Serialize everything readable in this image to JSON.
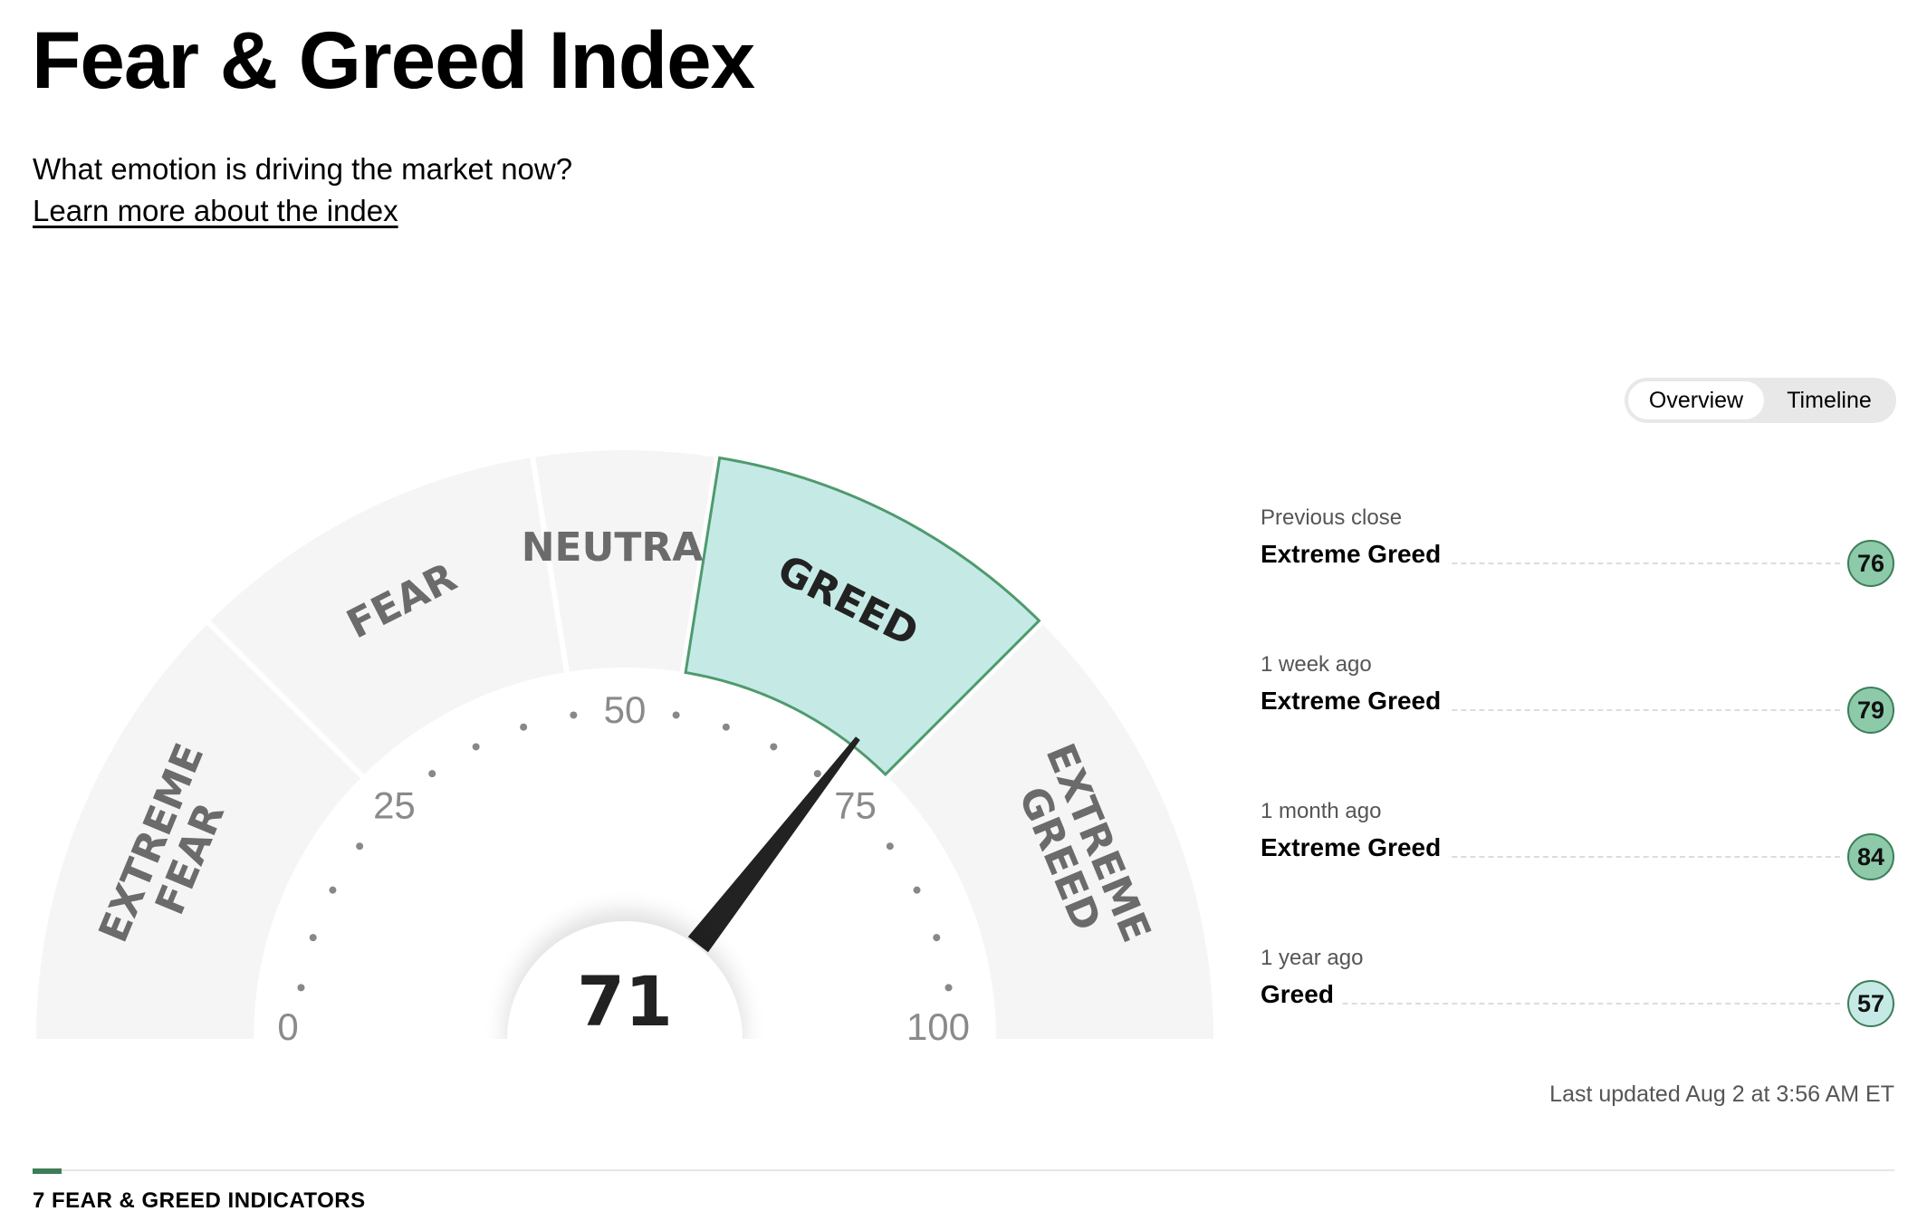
{
  "header": {
    "title": "Fear & Greed Index",
    "subtitle": "What emotion is driving the market now?",
    "learn_more_link": "Learn more about the index"
  },
  "tabs": [
    {
      "label": "Overview",
      "active": true
    },
    {
      "label": "Timeline",
      "active": false
    }
  ],
  "gauge": {
    "value": 71,
    "value_label": "71",
    "current_zone": "GREED",
    "zones": [
      {
        "lines": [
          "EXTREME",
          "FEAR"
        ],
        "from": 0,
        "to": 25
      },
      {
        "lines": [
          "FEAR"
        ],
        "from": 25,
        "to": 45
      },
      {
        "lines": [
          "NEUTRAL"
        ],
        "from": 45,
        "to": 55
      },
      {
        "lines": [
          "GREED"
        ],
        "from": 55,
        "to": 75
      },
      {
        "lines": [
          "EXTREME",
          "GREED"
        ],
        "from": 75,
        "to": 100
      }
    ],
    "tick_labels": [
      "0",
      "25",
      "50",
      "75",
      "100"
    ],
    "colors": {
      "zone_fill": "#f5f5f5",
      "active_fill": "#c5eae6",
      "active_stroke": "#4f9a6e",
      "label_color": "#6b6b6b",
      "needle": "#222222"
    }
  },
  "history": [
    {
      "when": "Previous close",
      "rating": "Extreme Greed",
      "value": "76",
      "color": "#8ccaaa"
    },
    {
      "when": "1 week ago",
      "rating": "Extreme Greed",
      "value": "79",
      "color": "#8ccaaa"
    },
    {
      "when": "1 month ago",
      "rating": "Extreme Greed",
      "value": "84",
      "color": "#8ccaaa"
    },
    {
      "when": "1 year ago",
      "rating": "Greed",
      "value": "57",
      "color": "#c5eae6"
    }
  ],
  "last_updated": "Last updated Aug 2 at 3:56 AM ET",
  "indicators_heading": "7 FEAR & GREED INDICATORS"
}
